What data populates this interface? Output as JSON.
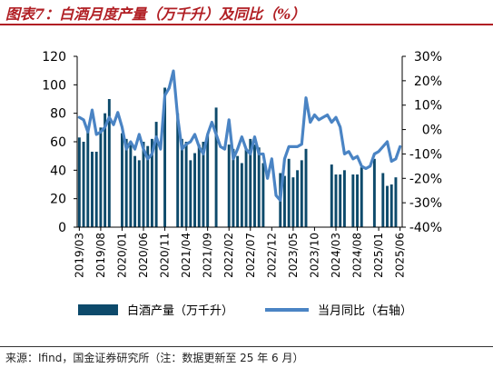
{
  "title": "图表7：白酒月度产量（万千升）及同比（%）",
  "source": "来源：Ifind，国金证券研究所（注：数据更新至 25 年 6 月）",
  "colors": {
    "bar": "#0d4a6b",
    "line": "#4a84c4",
    "title": "#b11f24"
  },
  "chart_data": {
    "type": "bar+line",
    "x": [
      "2019/03",
      "2019/04",
      "2019/05",
      "2019/06",
      "2019/07",
      "2019/08",
      "2019/09",
      "2019/10",
      "2019/11",
      "2019/12",
      "2020/01",
      "2020/02",
      "2020/03",
      "2020/04",
      "2020/05",
      "2020/06",
      "2020/07",
      "2020/08",
      "2020/09",
      "2020/10",
      "2020/11",
      "2020/12",
      "2021/01",
      "2021/02",
      "2021/03",
      "2021/04",
      "2021/05",
      "2021/06",
      "2021/07",
      "2021/08",
      "2021/09",
      "2021/10",
      "2021/11",
      "2021/12",
      "2022/01",
      "2022/02",
      "2022/03",
      "2022/04",
      "2022/05",
      "2022/06",
      "2022/07",
      "2022/08",
      "2022/09",
      "2022/10",
      "2022/11",
      "2022/12",
      "2023/01",
      "2023/02",
      "2023/03",
      "2023/04",
      "2023/05",
      "2023/06",
      "2023/07",
      "2023/08",
      "2023/09",
      "2023/10",
      "2023/11",
      "2023/12",
      "2024/01",
      "2024/02",
      "2024/03",
      "2024/04",
      "2024/05",
      "2024/06",
      "2024/07",
      "2024/08",
      "2024/09",
      "2024/10",
      "2024/11",
      "2024/12",
      "2025/01",
      "2025/02",
      "2025/03",
      "2025/04",
      "2025/05",
      "2025/06"
    ],
    "xtick_labels": [
      "2019/03",
      "2019/08",
      "2020/01",
      "2020/06",
      "2020/11",
      "2021/04",
      "2021/09",
      "2022/02",
      "2022/07",
      "2022/12",
      "2023/05",
      "2023/10",
      "2024/03",
      "2024/08",
      "2025/01",
      "2025/06"
    ],
    "series": [
      {
        "name": "白酒产量（万千升）",
        "type": "bar",
        "axis": "left",
        "values": [
          63,
          60,
          70,
          53,
          53,
          70,
          80,
          90,
          null,
          null,
          66,
          62,
          60,
          50,
          47,
          60,
          57,
          62,
          74,
          null,
          98,
          null,
          null,
          80,
          62,
          60,
          47,
          52,
          58,
          60,
          65,
          null,
          84,
          null,
          null,
          58,
          55,
          50,
          45,
          55,
          62,
          58,
          56,
          45,
          null,
          null,
          null,
          38,
          36,
          48,
          35,
          40,
          47,
          55,
          null,
          null,
          null,
          null,
          null,
          44,
          37,
          37,
          40,
          null,
          37,
          37,
          42,
          null,
          null,
          48,
          null,
          38,
          29,
          30,
          35,
          null
        ]
      },
      {
        "name": "当月同比（右轴）",
        "type": "line",
        "axis": "right",
        "values": [
          5,
          4,
          -1,
          8,
          -2,
          -1,
          1,
          5,
          2,
          7,
          1,
          -8,
          -5,
          -8,
          -2,
          -8,
          -12,
          -10,
          -3,
          -8,
          14,
          17,
          24,
          5,
          -8,
          -6,
          -5,
          -2,
          -7,
          -10,
          -2,
          3,
          -2,
          -7,
          -8,
          4,
          -12,
          -8,
          -3,
          -8,
          -10,
          -3,
          -10,
          -10,
          -20,
          -12,
          -27,
          -29,
          -12,
          -7,
          -7,
          -7,
          -6,
          13,
          3,
          6,
          4,
          5,
          6,
          3,
          5,
          1,
          -10,
          -9,
          -12,
          -11,
          -15,
          -16,
          -15,
          -10,
          -9,
          -7,
          -5,
          -13,
          -12,
          -7
        ]
      }
    ],
    "left_axis": {
      "ylim": [
        0,
        120
      ],
      "ticks": [
        "0",
        "20",
        "40",
        "60",
        "80",
        "100",
        "120"
      ]
    },
    "right_axis": {
      "ylim": [
        -40,
        30
      ],
      "ticks": [
        "-40%",
        "-30%",
        "-20%",
        "-10%",
        "0%",
        "10%",
        "20%",
        "30%"
      ]
    },
    "legend": {
      "placement": "bottom",
      "items": [
        {
          "label": "白酒产量（万千升）",
          "kind": "bar"
        },
        {
          "label": "当月同比（右轴）",
          "kind": "line"
        }
      ]
    },
    "grid": false
  }
}
